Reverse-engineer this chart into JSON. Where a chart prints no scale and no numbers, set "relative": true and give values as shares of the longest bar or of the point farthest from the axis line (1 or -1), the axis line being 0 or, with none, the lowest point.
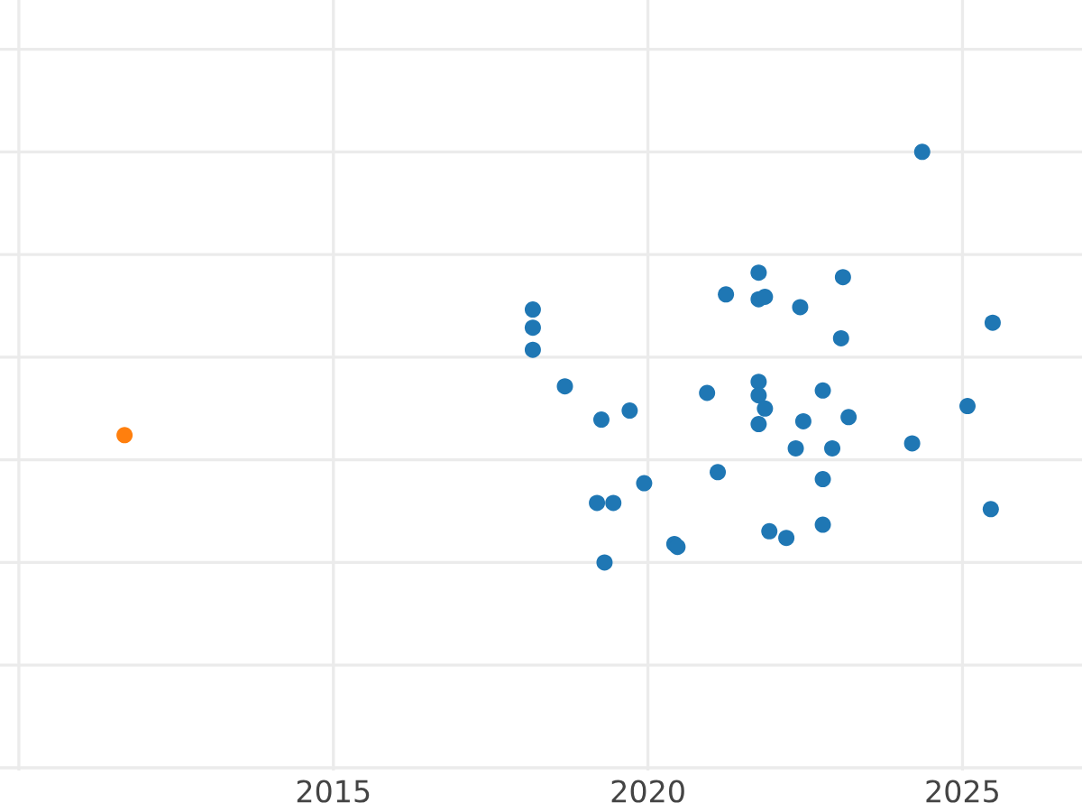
{
  "chart_data": {
    "type": "scatter",
    "relative": true,
    "grid": true,
    "marker": "circle",
    "xlim": [
      2009.7,
      2026.9
    ],
    "xticks": [
      {
        "value": 2010,
        "label": null
      },
      2015,
      2020,
      2025
    ],
    "series": [
      {
        "color": "#1f77b4",
        "x": [
          2024.36,
          2021.76,
          2023.1,
          2021.24,
          2021.76,
          2021.86,
          2022.42,
          2018.17,
          2018.17,
          2018.17,
          2025.48,
          2023.07,
          2018.68,
          2020.94,
          2021.76,
          2021.76,
          2021.86,
          2022.78,
          2019.71,
          2019.26,
          2021.76,
          2022.47,
          2023.19,
          2025.08,
          2022.35,
          2022.93,
          2024.2,
          2021.11,
          2022.78,
          2019.94,
          2019.19,
          2019.45,
          2025.45,
          2021.93,
          2022.2,
          2022.78,
          2020.42,
          2020.47,
          2019.31
        ],
        "values": [
          1.0,
          0.706,
          0.695,
          0.653,
          0.641,
          0.647,
          0.622,
          0.616,
          0.572,
          0.518,
          0.584,
          0.546,
          0.429,
          0.413,
          0.44,
          0.407,
          0.375,
          0.419,
          0.37,
          0.348,
          0.337,
          0.344,
          0.354,
          0.381,
          0.278,
          0.278,
          0.29,
          0.22,
          0.203,
          0.193,
          0.145,
          0.145,
          0.13,
          0.076,
          0.06,
          0.092,
          0.045,
          0.038,
          0.0
        ]
      },
      {
        "color": "#ff7f0e",
        "x": [
          2011.68
        ],
        "values": [
          0.31
        ]
      }
    ]
  }
}
